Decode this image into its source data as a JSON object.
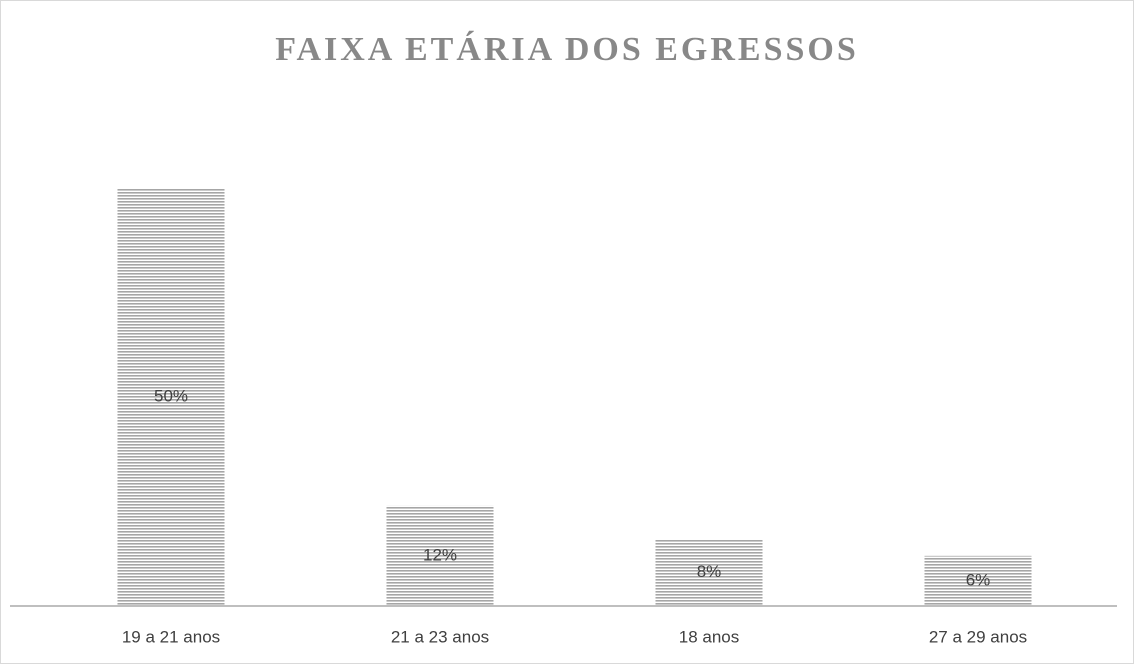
{
  "chart_data": {
    "type": "bar",
    "title": "FAIXA ETÁRIA DOS EGRESSOS",
    "categories": [
      "19 a 21 anos",
      "21 a 23 anos",
      "18 anos",
      "27 a 29 anos"
    ],
    "values": [
      50,
      12,
      8,
      6
    ],
    "value_labels": [
      "50%",
      "12%",
      "8%",
      "6%"
    ],
    "color": "#a6a6a6"
  }
}
